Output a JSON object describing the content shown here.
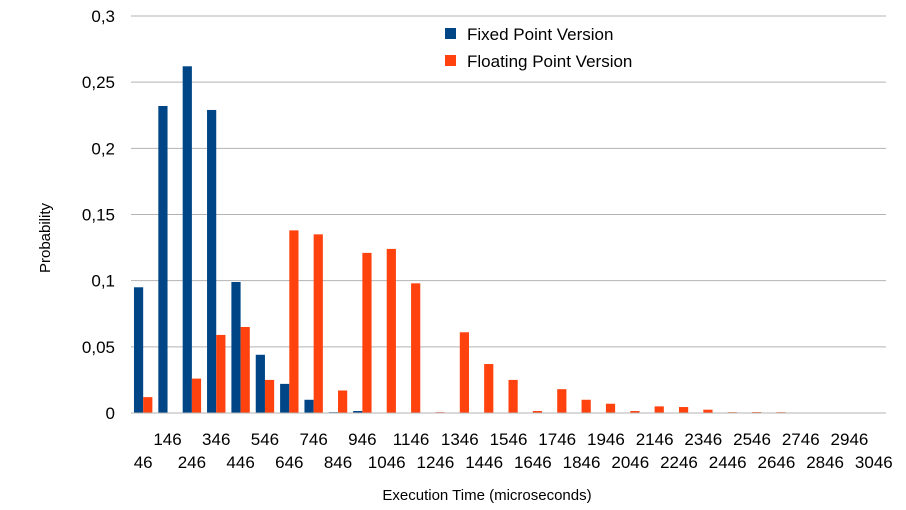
{
  "chart_data": {
    "type": "bar",
    "xlabel": "Execution Time (microseconds)",
    "ylabel": "Probability",
    "ylim": [
      0,
      0.3
    ],
    "yticks": [
      0,
      0.05,
      0.1,
      0.15,
      0.2,
      0.25,
      0.3
    ],
    "ytick_labels": [
      "0",
      "0,05",
      "0,1",
      "0,15",
      "0,2",
      "0,25",
      "0,3"
    ],
    "grid": true,
    "legend_position": "top-center",
    "categories": [
      "46",
      "146",
      "246",
      "346",
      "446",
      "546",
      "646",
      "746",
      "846",
      "946",
      "1046",
      "1146",
      "1246",
      "1346",
      "1446",
      "1546",
      "1646",
      "1746",
      "1846",
      "1946",
      "2046",
      "2146",
      "2246",
      "2346",
      "2446",
      "2546",
      "2646",
      "2746",
      "2846",
      "2946",
      "3046"
    ],
    "series": [
      {
        "name": "Fixed Point Version",
        "color": "#004586",
        "values": [
          0.095,
          0.232,
          0.262,
          0.229,
          0.099,
          0.044,
          0.022,
          0.01,
          0.0005,
          0.0015,
          0,
          0,
          0,
          0,
          0,
          0,
          0,
          0,
          0,
          0,
          0,
          0,
          0,
          0,
          0,
          0,
          0,
          0,
          0,
          0,
          0
        ]
      },
      {
        "name": "Floating Point Version",
        "color": "#ff420e",
        "values": [
          0.012,
          0,
          0.026,
          0.059,
          0.065,
          0.025,
          0.138,
          0.135,
          0.017,
          0.121,
          0.124,
          0.098,
          0.0005,
          0.061,
          0.037,
          0.025,
          0.0015,
          0.018,
          0.01,
          0.007,
          0.0015,
          0.005,
          0.0045,
          0.0025,
          0.0003,
          0.0007,
          0.0003,
          0,
          0,
          0,
          0
        ]
      }
    ]
  }
}
